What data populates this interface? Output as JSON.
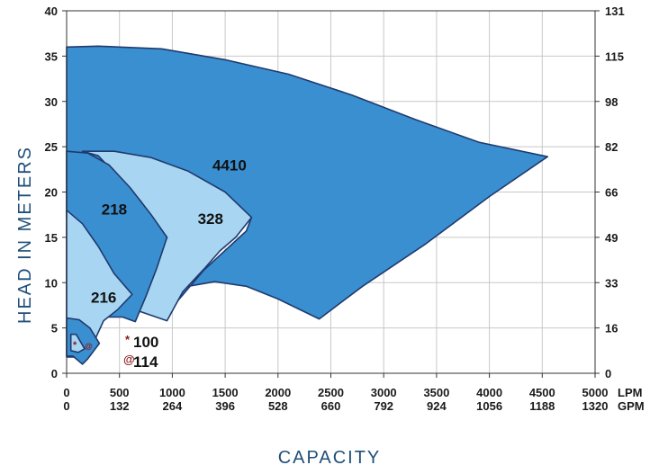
{
  "chart_data": {
    "type": "area",
    "title": "",
    "xlabel": "CAPACITY",
    "ylabel": "HEAD IN METERS",
    "xlim": [
      0,
      5000
    ],
    "ylim": [
      0,
      40
    ],
    "grid": true,
    "x_ticks_lpm": [
      "0",
      "500",
      "1000",
      "1500",
      "2000",
      "2500",
      "3000",
      "3500",
      "4000",
      "4500",
      "5000"
    ],
    "x_ticks_gpm": [
      "0",
      "132",
      "264",
      "396",
      "528",
      "660",
      "792",
      "924",
      "1056",
      "1188",
      "1320"
    ],
    "x_unit_lpm": "LPM",
    "x_unit_gpm": "GPM",
    "y_ticks_left": [
      "0",
      "5",
      "10",
      "15",
      "20",
      "25",
      "30",
      "35",
      "40"
    ],
    "y_ticks_right": [
      "0",
      "16",
      "33",
      "49",
      "66",
      "82",
      "98",
      "115",
      "131"
    ],
    "y_ticks_right_values": [
      0,
      5,
      10,
      15,
      20,
      25,
      30,
      35,
      40
    ],
    "colors": {
      "dark": "#3a8fd0",
      "light": "#a8d5f2",
      "border": "#1f3a6e",
      "grid": "#c8c8c8",
      "accent": "#8b1a1a"
    },
    "series": [
      {
        "name": "4410",
        "fill": "dark",
        "label_pos": [
          1380,
          22.4
        ],
        "points": [
          [
            0,
            36
          ],
          [
            300,
            36.1
          ],
          [
            900,
            35.8
          ],
          [
            1500,
            34.6
          ],
          [
            2100,
            33
          ],
          [
            2700,
            30.7
          ],
          [
            3300,
            28
          ],
          [
            3900,
            25.5
          ],
          [
            4550,
            23.9
          ],
          [
            4000,
            19.5
          ],
          [
            3400,
            14.3
          ],
          [
            2800,
            9.6
          ],
          [
            2390,
            6
          ],
          [
            2000,
            8.2
          ],
          [
            1700,
            9.6
          ],
          [
            1400,
            10.1
          ],
          [
            1100,
            9.5
          ],
          [
            950,
            6.6
          ],
          [
            1300,
            11.4
          ],
          [
            1700,
            15.7
          ],
          [
            1750,
            17.2
          ],
          [
            0,
            17.2
          ]
        ]
      },
      {
        "name": "328",
        "fill": "light",
        "label_pos": [
          1240,
          16.5
        ],
        "points": [
          [
            150,
            24.5
          ],
          [
            450,
            24.5
          ],
          [
            800,
            23.8
          ],
          [
            1150,
            22.3
          ],
          [
            1500,
            20
          ],
          [
            1750,
            17.2
          ],
          [
            1600,
            15
          ],
          [
            1450,
            13.5
          ],
          [
            1300,
            11.5
          ],
          [
            1100,
            9
          ],
          [
            950,
            5.8
          ],
          [
            650,
            7
          ],
          [
            950,
            15
          ],
          [
            700,
            19
          ],
          [
            300,
            24
          ]
        ]
      },
      {
        "name": "218",
        "fill": "dark",
        "label_pos": [
          330,
          17.5
        ],
        "points": [
          [
            0,
            24.5
          ],
          [
            200,
            24.3
          ],
          [
            400,
            23
          ],
          [
            600,
            20.5
          ],
          [
            800,
            17.5
          ],
          [
            950,
            15
          ],
          [
            850,
            11.5
          ],
          [
            750,
            8.5
          ],
          [
            650,
            5.7
          ],
          [
            530,
            6.2
          ],
          [
            0,
            6.2
          ]
        ]
      },
      {
        "name": "216",
        "fill": "light",
        "label_pos": [
          230,
          7.8
        ],
        "points": [
          [
            0,
            18
          ],
          [
            150,
            16.5
          ],
          [
            300,
            14
          ],
          [
            450,
            11
          ],
          [
            620,
            8.7
          ],
          [
            480,
            7
          ],
          [
            350,
            5.8
          ],
          [
            260,
            3.5
          ],
          [
            160,
            2.3
          ],
          [
            80,
            1.8
          ],
          [
            0,
            1.8
          ]
        ]
      },
      {
        "name": "100",
        "fill": "dark",
        "label_pos": [
          480,
          3.1
        ],
        "points": [
          [
            0,
            6.1
          ],
          [
            120,
            5.9
          ],
          [
            220,
            5
          ],
          [
            310,
            3.3
          ],
          [
            200,
            1.6
          ],
          [
            150,
            1
          ],
          [
            60,
            1.9
          ],
          [
            0,
            1.9
          ]
        ]
      },
      {
        "name": "114",
        "fill": "light",
        "label_pos": [
          480,
          0.9
        ],
        "points": [
          [
            40,
            4.3
          ],
          [
            90,
            4.3
          ],
          [
            170,
            2.7
          ],
          [
            110,
            2.3
          ],
          [
            40,
            2.5
          ]
        ]
      }
    ],
    "annotations": [
      {
        "symbol": "*",
        "text": "100"
      },
      {
        "symbol": "@",
        "text": "114"
      }
    ]
  }
}
